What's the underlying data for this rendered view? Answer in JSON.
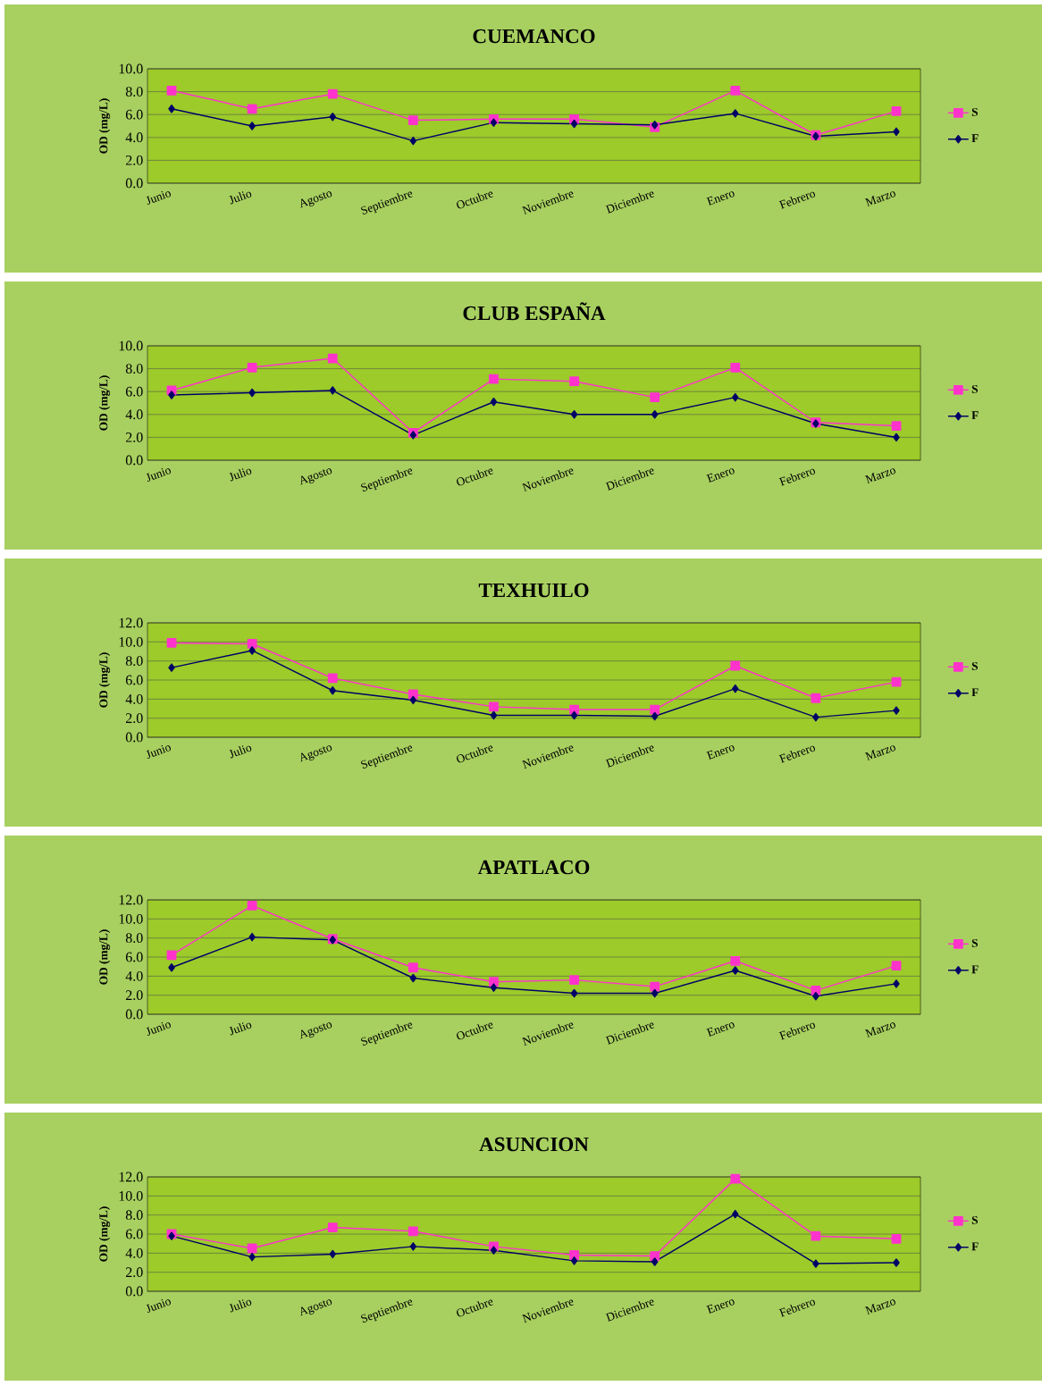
{
  "chart_data": [
    {
      "type": "line",
      "title": "CUEMANCO",
      "ylabel": "OD (mg/L)",
      "categories": [
        "Junio",
        "Julio",
        "Agosto",
        "Septiembre",
        "Octubre",
        "Noviembre",
        "Diciembre",
        "Enero",
        "Febrero",
        "Marzo"
      ],
      "series": [
        {
          "name": "S",
          "color": "#ff33cc",
          "marker": "square",
          "values": [
            8.1,
            6.5,
            7.8,
            5.5,
            5.6,
            5.6,
            4.9,
            8.1,
            4.2,
            6.3
          ]
        },
        {
          "name": "F",
          "color": "#000066",
          "marker": "diamond",
          "values": [
            6.5,
            5.0,
            5.8,
            3.7,
            5.3,
            5.2,
            5.1,
            6.1,
            4.1,
            4.5
          ]
        }
      ],
      "ylim": [
        0,
        10
      ],
      "yticks": [
        {
          "value": 0,
          "label": "0.0"
        },
        {
          "value": 2,
          "label": "2.0"
        },
        {
          "value": 4,
          "label": "4.0"
        },
        {
          "value": 6,
          "label": "6.0"
        },
        {
          "value": 8,
          "label": "8.0"
        },
        {
          "value": 10,
          "label": "10.0"
        }
      ],
      "grid": "y",
      "legend": "right"
    },
    {
      "type": "line",
      "title": "CLUB ESPAÑA",
      "ylabel": "OD (mg/L)",
      "categories": [
        "Junio",
        "Julio",
        "Agosto",
        "Septiembre",
        "Octubre",
        "Noviembre",
        "Diciembre",
        "Enero",
        "Febrero",
        "Marzo"
      ],
      "series": [
        {
          "name": "S",
          "color": "#ff33cc",
          "marker": "square",
          "values": [
            6.1,
            8.1,
            8.9,
            2.4,
            7.1,
            6.9,
            5.5,
            8.1,
            3.3,
            3.0
          ]
        },
        {
          "name": "F",
          "color": "#000066",
          "marker": "diamond",
          "values": [
            5.7,
            5.9,
            6.1,
            2.2,
            5.1,
            4.0,
            4.0,
            5.5,
            3.2,
            2.0
          ]
        }
      ],
      "ylim": [
        0,
        10
      ],
      "yticks": [
        {
          "value": 0,
          "label": "0.0"
        },
        {
          "value": 2,
          "label": "2.0"
        },
        {
          "value": 4,
          "label": "4.0"
        },
        {
          "value": 6,
          "label": "6.0"
        },
        {
          "value": 8,
          "label": "8.0"
        },
        {
          "value": 10,
          "label": "10.0"
        }
      ],
      "grid": "y",
      "legend": "right"
    },
    {
      "type": "line",
      "title": "TEXHUILO",
      "ylabel": "OD (mg/L)",
      "categories": [
        "Junio",
        "Julio",
        "Agosto",
        "Septiembre",
        "Octubre",
        "Noviembre",
        "Diciembre",
        "Enero",
        "Febrero",
        "Marzo"
      ],
      "series": [
        {
          "name": "S",
          "color": "#ff33cc",
          "marker": "square",
          "values": [
            9.9,
            9.8,
            6.2,
            4.5,
            3.2,
            2.9,
            2.9,
            7.5,
            4.1,
            5.8
          ]
        },
        {
          "name": "F",
          "color": "#000066",
          "marker": "diamond",
          "values": [
            7.3,
            9.1,
            4.9,
            3.9,
            2.3,
            2.3,
            2.2,
            5.1,
            2.1,
            2.8
          ]
        }
      ],
      "ylim": [
        0,
        12
      ],
      "yticks": [
        {
          "value": 0,
          "label": "0.0"
        },
        {
          "value": 2,
          "label": "2.0"
        },
        {
          "value": 4,
          "label": "4.0"
        },
        {
          "value": 6,
          "label": "6.0"
        },
        {
          "value": 8,
          "label": "8.0"
        },
        {
          "value": 10,
          "label": "10.0"
        },
        {
          "value": 12,
          "label": "12.0"
        }
      ],
      "grid": "y",
      "legend": "right"
    },
    {
      "type": "line",
      "title": "APATLACO",
      "ylabel": "OD (mg/L)",
      "categories": [
        "Junio",
        "Julio",
        "Agosto",
        "Septiembre",
        "Octubre",
        "Noviembre",
        "Diciembre",
        "Enero",
        "Febrero",
        "Marzo"
      ],
      "series": [
        {
          "name": "S",
          "color": "#ff33cc",
          "marker": "square",
          "values": [
            6.2,
            11.4,
            7.9,
            4.9,
            3.4,
            3.6,
            2.9,
            5.6,
            2.5,
            5.1
          ]
        },
        {
          "name": "F",
          "color": "#000066",
          "marker": "diamond",
          "values": [
            4.9,
            8.1,
            7.8,
            3.8,
            2.8,
            2.2,
            2.2,
            4.6,
            1.9,
            3.2
          ]
        }
      ],
      "ylim": [
        0,
        12
      ],
      "yticks": [
        {
          "value": 0,
          "label": "0.0"
        },
        {
          "value": 2,
          "label": "2.0"
        },
        {
          "value": 4,
          "label": "4.0"
        },
        {
          "value": 6,
          "label": "6.0"
        },
        {
          "value": 8,
          "label": "8.0"
        },
        {
          "value": 10,
          "label": "10.0"
        },
        {
          "value": 12,
          "label": "12.0"
        }
      ],
      "grid": "y",
      "legend": "right"
    },
    {
      "type": "line",
      "title": "ASUNCION",
      "ylabel": "OD (mg/L)",
      "categories": [
        "Junio",
        "Julio",
        "Agosto",
        "Septiembre",
        "Octubre",
        "Noviembre",
        "Diciembre",
        "Enero",
        "Febrero",
        "Marzo"
      ],
      "series": [
        {
          "name": "S",
          "color": "#ff33cc",
          "marker": "square",
          "values": [
            6.0,
            4.5,
            6.7,
            6.3,
            4.7,
            3.8,
            3.7,
            11.8,
            5.8,
            5.5
          ]
        },
        {
          "name": "F",
          "color": "#000066",
          "marker": "diamond",
          "values": [
            5.8,
            3.6,
            3.9,
            4.7,
            4.3,
            3.2,
            3.1,
            8.1,
            2.9,
            3.0
          ]
        }
      ],
      "ylim": [
        0,
        12
      ],
      "yticks": [
        {
          "value": 0,
          "label": "0.0"
        },
        {
          "value": 2,
          "label": "2.0"
        },
        {
          "value": 4,
          "label": "4.0"
        },
        {
          "value": 6,
          "label": "6.0"
        },
        {
          "value": 8,
          "label": "8.0"
        },
        {
          "value": 10,
          "label": "10.0"
        },
        {
          "value": 12,
          "label": "12.0"
        }
      ],
      "grid": "y",
      "legend": "right"
    }
  ]
}
